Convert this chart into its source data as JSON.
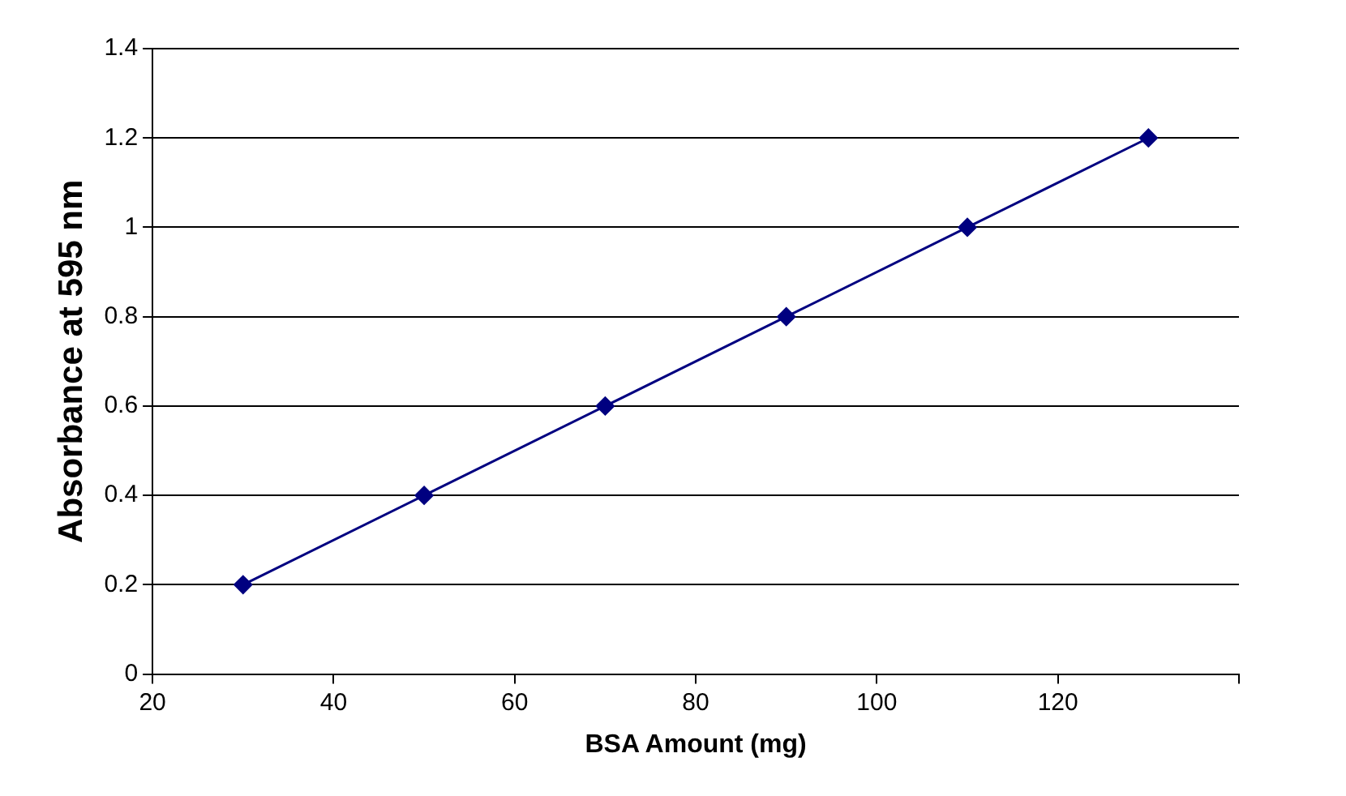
{
  "chart_data": {
    "type": "line",
    "xlabel": "BSA Amount (mg)",
    "ylabel": "Absorbance at 595 nm",
    "x": [
      30,
      50,
      70,
      90,
      110,
      130
    ],
    "series": [
      {
        "color": "#000080",
        "values": [
          0.2,
          0.4,
          0.6,
          0.8,
          1,
          1.2
        ]
      }
    ],
    "xlim": [
      20,
      140
    ],
    "xticks": [
      20,
      40,
      60,
      80,
      100,
      120,
      {
        "value": 140,
        "label": null
      }
    ],
    "ylim": [
      0,
      1.4
    ],
    "yticks": [
      0,
      0.2,
      0.4,
      0.6,
      0.8,
      1,
      1.2,
      1.4
    ],
    "grid": "y",
    "legend": false,
    "marker": "diamond",
    "line_style": "solid"
  }
}
